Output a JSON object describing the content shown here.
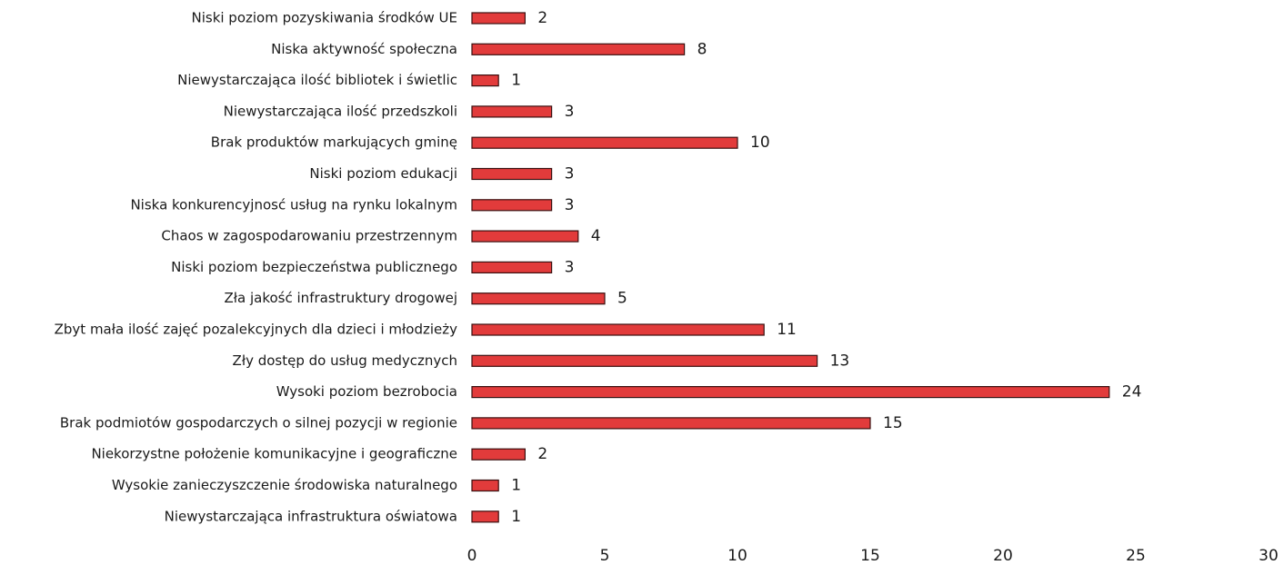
{
  "chart_data": {
    "type": "barh",
    "categories": [
      "Niski poziom pozyskiwania środków UE",
      "Niska aktywność społeczna",
      "Niewystarczająca ilość bibliotek i świetlic",
      "Niewystarczająca ilość przedszkoli",
      "Brak produktów markujących gminę",
      "Niski poziom edukacji",
      "Niska konkurencyjnosć usług na rynku lokalnym",
      "Chaos w zagospodarowaniu przestrzennym",
      "Niski poziom bezpieczeństwa publicznego",
      "Zła jakość infrastruktury drogowej",
      "Zbyt mała ilość zajęć pozalekcyjnych dla dzieci i młodzieży",
      "Zły dostęp do usług medycznych",
      "Wysoki poziom bezrobocia",
      "Brak podmiotów gospodarczych o silnej pozycji w regionie",
      "Niekorzystne położenie komunikacyjne i geograficzne",
      "Wysokie zanieczyszczenie środowiska naturalnego",
      "Niewystarczająca infrastruktura oświatowa"
    ],
    "values": [
      2,
      8,
      1,
      3,
      10,
      3,
      3,
      4,
      3,
      5,
      11,
      13,
      24,
      15,
      2,
      1,
      1
    ],
    "color": "#e23b3b",
    "xlim": [
      0,
      30
    ],
    "xticks": [
      0,
      5,
      10,
      15,
      20,
      25,
      30
    ],
    "grid": false
  }
}
